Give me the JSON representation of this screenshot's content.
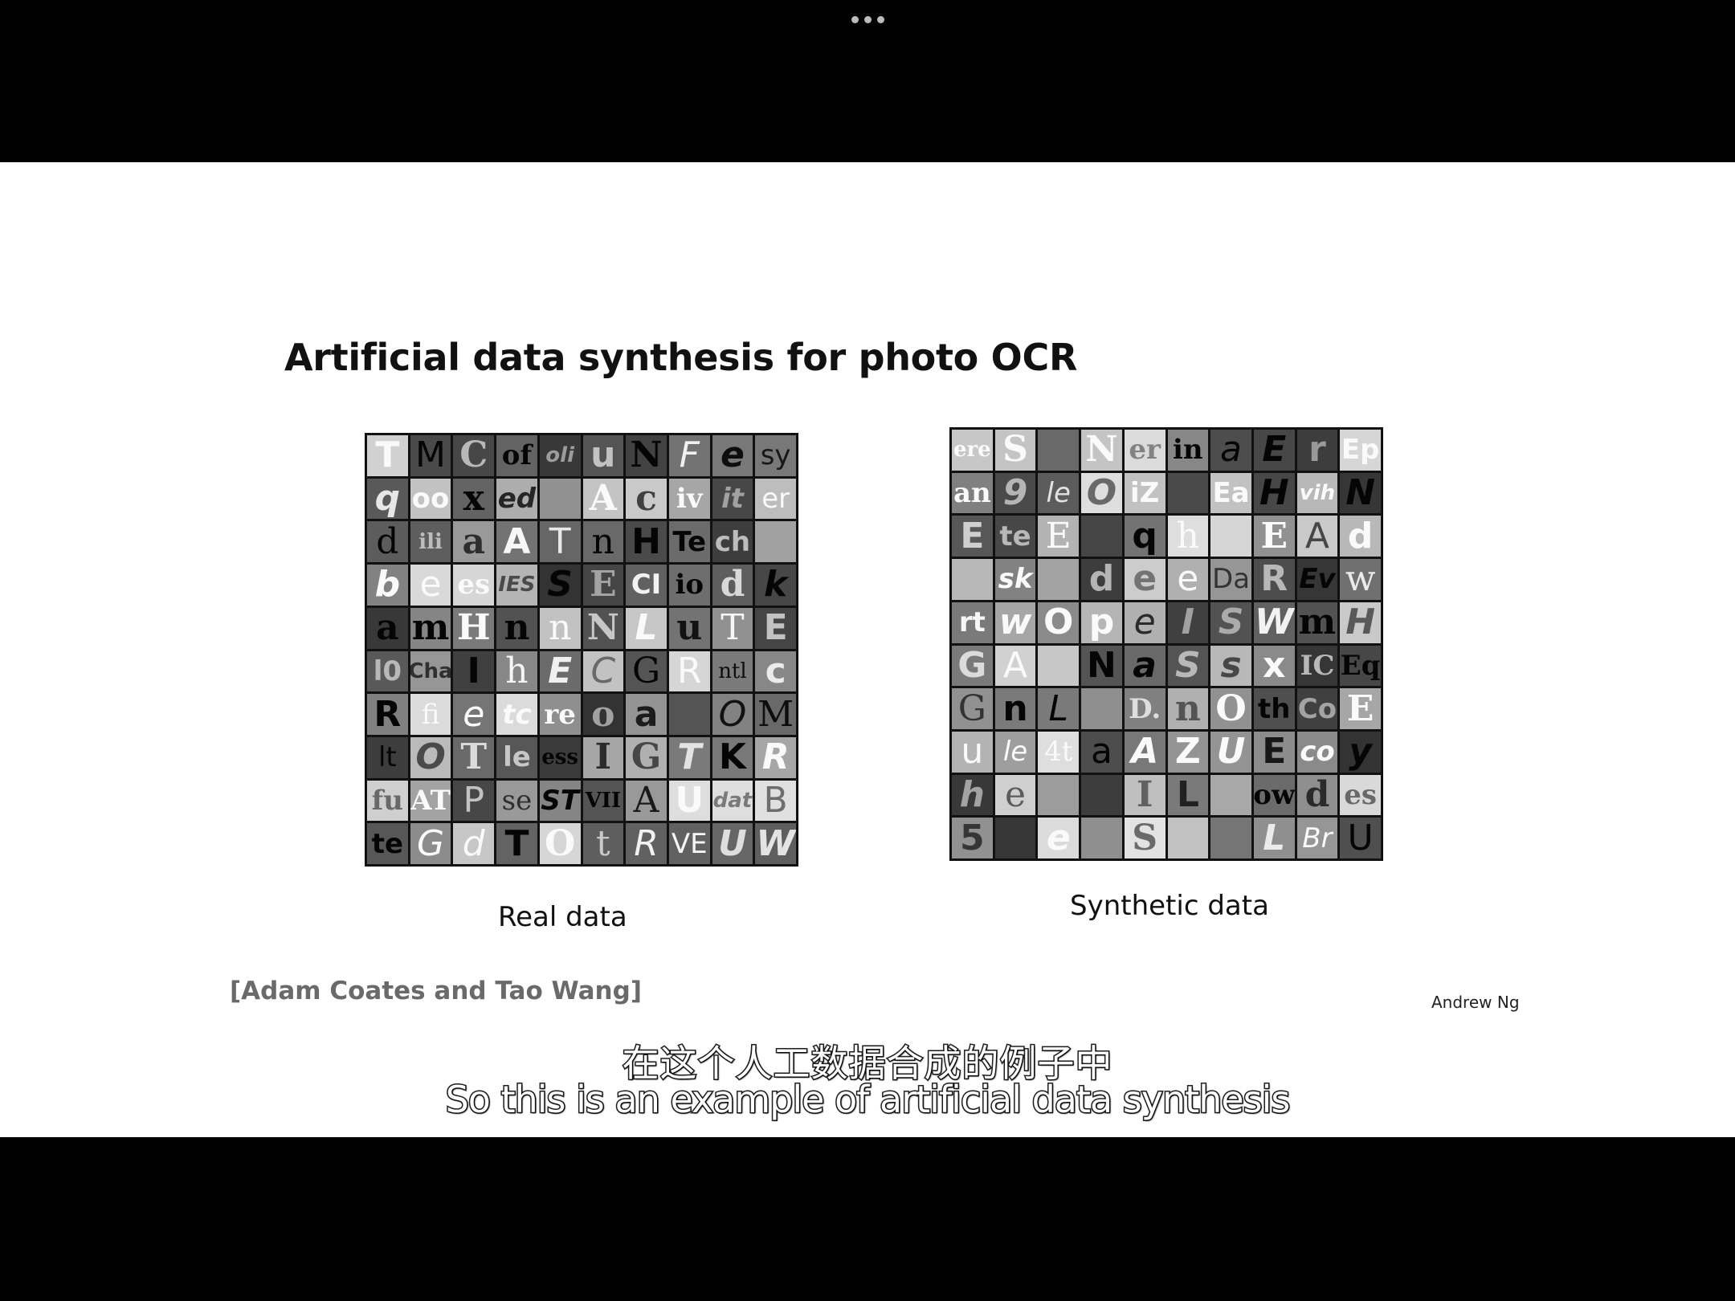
{
  "slide": {
    "title": "Artificial data synthesis for photo OCR",
    "real_caption": "Real data",
    "synthetic_caption": "Synthetic data",
    "citation": "[Adam Coates and Tao Wang]",
    "author": "Andrew Ng"
  },
  "real_tiles": [
    "T",
    "M",
    "C",
    "of",
    "oli",
    "u",
    "N",
    "F",
    "e",
    "sy",
    "q",
    "oo",
    "x",
    "ed",
    "",
    "A",
    "c",
    "iv",
    "it",
    "er",
    "d",
    "ili",
    "a",
    "A",
    "T",
    "n",
    "H",
    "Te",
    "ch",
    "",
    "b",
    "e",
    "es",
    "IES",
    "S",
    "E",
    "CI",
    "io",
    "d",
    "k",
    "a",
    "m",
    "H",
    "n",
    "n",
    "N",
    "L",
    "u",
    "T",
    "E",
    "l0",
    "Cha",
    "I",
    "h",
    "E",
    "C",
    "G",
    "R",
    "ntl",
    "c",
    "R",
    "fi",
    "e",
    "tc",
    "re",
    "o",
    "a",
    "",
    "O",
    "M",
    "lt",
    "O",
    "T",
    "le",
    "ess",
    "I",
    "G",
    "T",
    "K",
    "R",
    "fu",
    "AT",
    "P",
    "se",
    "ST",
    "VII",
    "A",
    "U",
    "dat",
    "B",
    "te",
    "G",
    "d",
    "T",
    "O",
    "t",
    "R",
    "VE",
    "U",
    "W"
  ],
  "synthetic_tiles": [
    "ere",
    "S",
    "",
    "N",
    "er",
    "in",
    "a",
    "E",
    "r",
    "Ep",
    "an",
    "9",
    "le",
    "O",
    "iZ",
    "",
    "Ea",
    "H",
    "vih",
    "N",
    "E",
    "te",
    "E",
    "",
    "q",
    "h",
    "",
    "E",
    "A",
    "d",
    "",
    "sk",
    "",
    "d",
    "e",
    "e",
    "Da",
    "R",
    "Ev",
    "w",
    "rt",
    "w",
    "O",
    "p",
    "e",
    "I",
    "S",
    "W",
    "m",
    "H",
    "G",
    "A",
    "",
    "N",
    "a",
    "S",
    "s",
    "x",
    "IC",
    "Eq",
    "G",
    "n",
    "L",
    "",
    "D.",
    "n",
    "O",
    "th",
    "Co",
    "E",
    "u",
    "le",
    "4t",
    "a",
    "A",
    "Z",
    "U",
    "E",
    "co",
    "y",
    "h",
    "e",
    "",
    "",
    "I",
    "L",
    "",
    "ow",
    "d",
    "es",
    "5",
    "",
    "e",
    "",
    "S",
    "",
    "",
    "L",
    "Br",
    "U"
  ],
  "subtitles": {
    "cn": "在这个人工数据合成的例子中",
    "en": "So this is an example of artificial data synthesis"
  }
}
